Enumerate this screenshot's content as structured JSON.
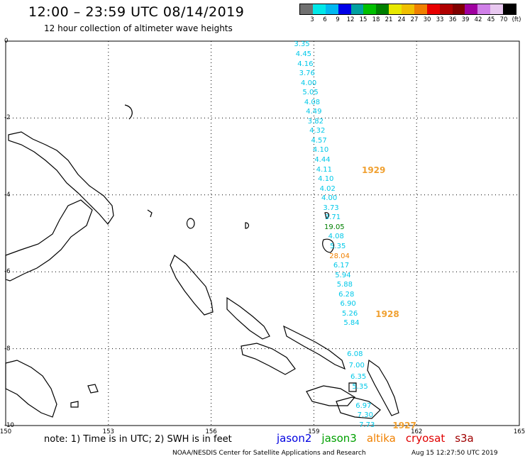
{
  "header": {
    "title": "12:00 – 23:59 UTC 08/14/2019",
    "subtitle": "12 hour collection of altimeter wave heights"
  },
  "legend": {
    "colors": [
      "#707070",
      "#00e8e8",
      "#00b8f0",
      "#0000e8",
      "#00a0a0",
      "#00c000",
      "#008000",
      "#e8e800",
      "#f0c000",
      "#f08000",
      "#e80000",
      "#b00000",
      "#800000",
      "#a000a0",
      "#d080e8",
      "#e8c8f0",
      "#000000"
    ],
    "labels": [
      "3",
      "6",
      "9",
      "12",
      "15",
      "18",
      "21",
      "24",
      "27",
      "30",
      "33",
      "36",
      "39",
      "42",
      "45",
      "70"
    ],
    "unit": "(ft)"
  },
  "axes": {
    "lat_labels": [
      "0",
      "-2",
      "-4",
      "-6",
      "-8",
      "-10"
    ],
    "lon_labels": [
      "150",
      "153",
      "156",
      "159",
      "162",
      "165"
    ]
  },
  "swh_values": [
    {
      "v": "3.35",
      "c": "#00c8e8",
      "lon": 158.65,
      "lat": -0.1
    },
    {
      "v": "4.45",
      "c": "#00c8e8",
      "lon": 158.7,
      "lat": -0.35
    },
    {
      "v": "4.16",
      "c": "#00c8e8",
      "lon": 158.75,
      "lat": -0.6
    },
    {
      "v": "3.76",
      "c": "#00c8e8",
      "lon": 158.8,
      "lat": -0.85
    },
    {
      "v": "4.00",
      "c": "#00c8e8",
      "lon": 158.85,
      "lat": -1.1
    },
    {
      "v": "5.05",
      "c": "#00c8e8",
      "lon": 158.9,
      "lat": -1.35
    },
    {
      "v": "4.08",
      "c": "#00c8e8",
      "lon": 158.95,
      "lat": -1.6
    },
    {
      "v": "4.49",
      "c": "#00c8e8",
      "lon": 159.0,
      "lat": -1.85
    },
    {
      "v": "3.82",
      "c": "#00c8e8",
      "lon": 159.05,
      "lat": -2.1
    },
    {
      "v": "4.32",
      "c": "#00c8e8",
      "lon": 159.1,
      "lat": -2.35
    },
    {
      "v": "4.57",
      "c": "#00c8e8",
      "lon": 159.15,
      "lat": -2.6
    },
    {
      "v": "4.10",
      "c": "#00c8e8",
      "lon": 159.2,
      "lat": -2.85
    },
    {
      "v": "4.44",
      "c": "#00c8e8",
      "lon": 159.25,
      "lat": -3.1
    },
    {
      "v": "4.11",
      "c": "#00c8e8",
      "lon": 159.3,
      "lat": -3.35
    },
    {
      "v": "4.10",
      "c": "#00c8e8",
      "lon": 159.35,
      "lat": -3.6
    },
    {
      "v": "4.02",
      "c": "#00c8e8",
      "lon": 159.4,
      "lat": -3.85
    },
    {
      "v": "4.00",
      "c": "#00c8e8",
      "lon": 159.45,
      "lat": -4.1
    },
    {
      "v": "3.73",
      "c": "#00c8e8",
      "lon": 159.5,
      "lat": -4.35
    },
    {
      "v": "3.71",
      "c": "#00c8e8",
      "lon": 159.55,
      "lat": -4.6
    },
    {
      "v": "19.05",
      "c": "#008000",
      "lon": 159.6,
      "lat": -4.85
    },
    {
      "v": "4.08",
      "c": "#00c8e8",
      "lon": 159.65,
      "lat": -5.1
    },
    {
      "v": "5.35",
      "c": "#00c8e8",
      "lon": 159.7,
      "lat": -5.35
    },
    {
      "v": "28.04",
      "c": "#f08000",
      "lon": 159.75,
      "lat": -5.6
    },
    {
      "v": "6.17",
      "c": "#00c8e8",
      "lon": 159.8,
      "lat": -5.85
    },
    {
      "v": "5.94",
      "c": "#00c8e8",
      "lon": 159.85,
      "lat": -6.1
    },
    {
      "v": "5.88",
      "c": "#00c8e8",
      "lon": 159.9,
      "lat": -6.35
    },
    {
      "v": "6.28",
      "c": "#00c8e8",
      "lon": 159.95,
      "lat": -6.6
    },
    {
      "v": "6.90",
      "c": "#00c8e8",
      "lon": 160.0,
      "lat": -6.85
    },
    {
      "v": "5.26",
      "c": "#00c8e8",
      "lon": 160.05,
      "lat": -7.1
    },
    {
      "v": "5.84",
      "c": "#00c8e8",
      "lon": 160.1,
      "lat": -7.35
    },
    {
      "v": "6.08",
      "c": "#00c8e8",
      "lon": 160.2,
      "lat": -8.15
    },
    {
      "v": "7.00",
      "c": "#00c8e8",
      "lon": 160.25,
      "lat": -8.45
    },
    {
      "v": "6.35",
      "c": "#00c8e8",
      "lon": 160.3,
      "lat": -8.75
    },
    {
      "v": "5.35",
      "c": "#00c8e8",
      "lon": 160.35,
      "lat": -9.0
    },
    {
      "v": "6.97",
      "c": "#00c8e8",
      "lon": 160.45,
      "lat": -9.5
    },
    {
      "v": "7.30",
      "c": "#00c8e8",
      "lon": 160.5,
      "lat": -9.75
    },
    {
      "v": "7.73",
      "c": "#00c8e8",
      "lon": 160.55,
      "lat": -10.0
    }
  ],
  "pass_times": [
    {
      "label": "1929",
      "lon": 160.4,
      "lat": -3.35
    },
    {
      "label": "1928",
      "lon": 160.8,
      "lat": -7.1
    },
    {
      "label": "1927",
      "lon": 161.3,
      "lat": -10.0
    }
  ],
  "footer": {
    "note": "note: 1) Time is in UTC; 2) SWH is in feet",
    "satellites": [
      {
        "name": "jason2",
        "color": "#0000e0"
      },
      {
        "name": "jason3",
        "color": "#00a000"
      },
      {
        "name": "altika",
        "color": "#f08000"
      },
      {
        "name": "cryosat",
        "color": "#e00000"
      },
      {
        "name": "s3a",
        "color": "#a00000"
      }
    ],
    "credit": "NOAA/NESDIS Center for Satellite Applications and Research",
    "timestamp": "Aug 15 12:27:50 UTC 2019"
  }
}
